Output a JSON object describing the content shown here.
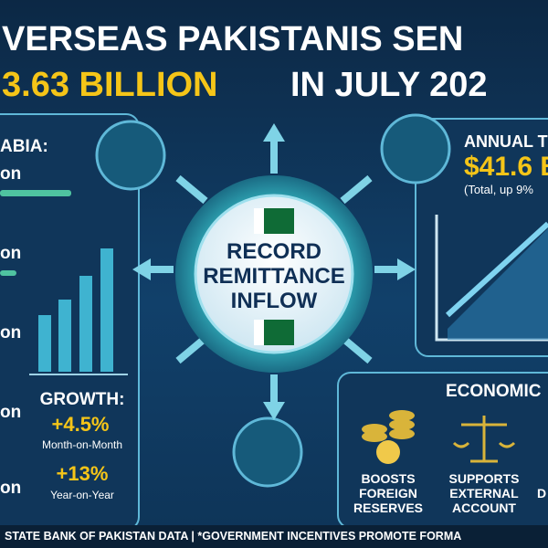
{
  "header": {
    "line1": "VERSEAS PAKISTANIS SEN",
    "amount": "3.63 BILLION",
    "line2_rest": "IN JULY 202"
  },
  "left_panel": {
    "country": "ABIA:",
    "items": [
      "on",
      "on",
      "on",
      "on",
      "on"
    ],
    "growth": {
      "title": "GROWTH:",
      "mom_value": "+4.5%",
      "mom_label": "Month-on-Month",
      "yoy_value": "+13%",
      "yoy_label": "Year-on-Year"
    }
  },
  "center": {
    "line1": "RECORD",
    "line2": "REMITTANCE",
    "line3": "INFLOW"
  },
  "annual": {
    "title": "ANNUAL T",
    "value": "$41.6 B",
    "note": "(Total, up 9%"
  },
  "economic": {
    "title": "ECONOMIC",
    "items": [
      {
        "line1": "BOOSTS",
        "line2": "FOREIGN",
        "line3": "RESERVES"
      },
      {
        "line1": "SUPPORTS",
        "line2": "EXTERNAL",
        "line3": "ACCOUNT"
      }
    ],
    "partial": "D"
  },
  "footer": "STATE BANK OF PAKISTAN DATA | *GOVERNMENT INCENTIVES PROMOTE FORMA"
}
